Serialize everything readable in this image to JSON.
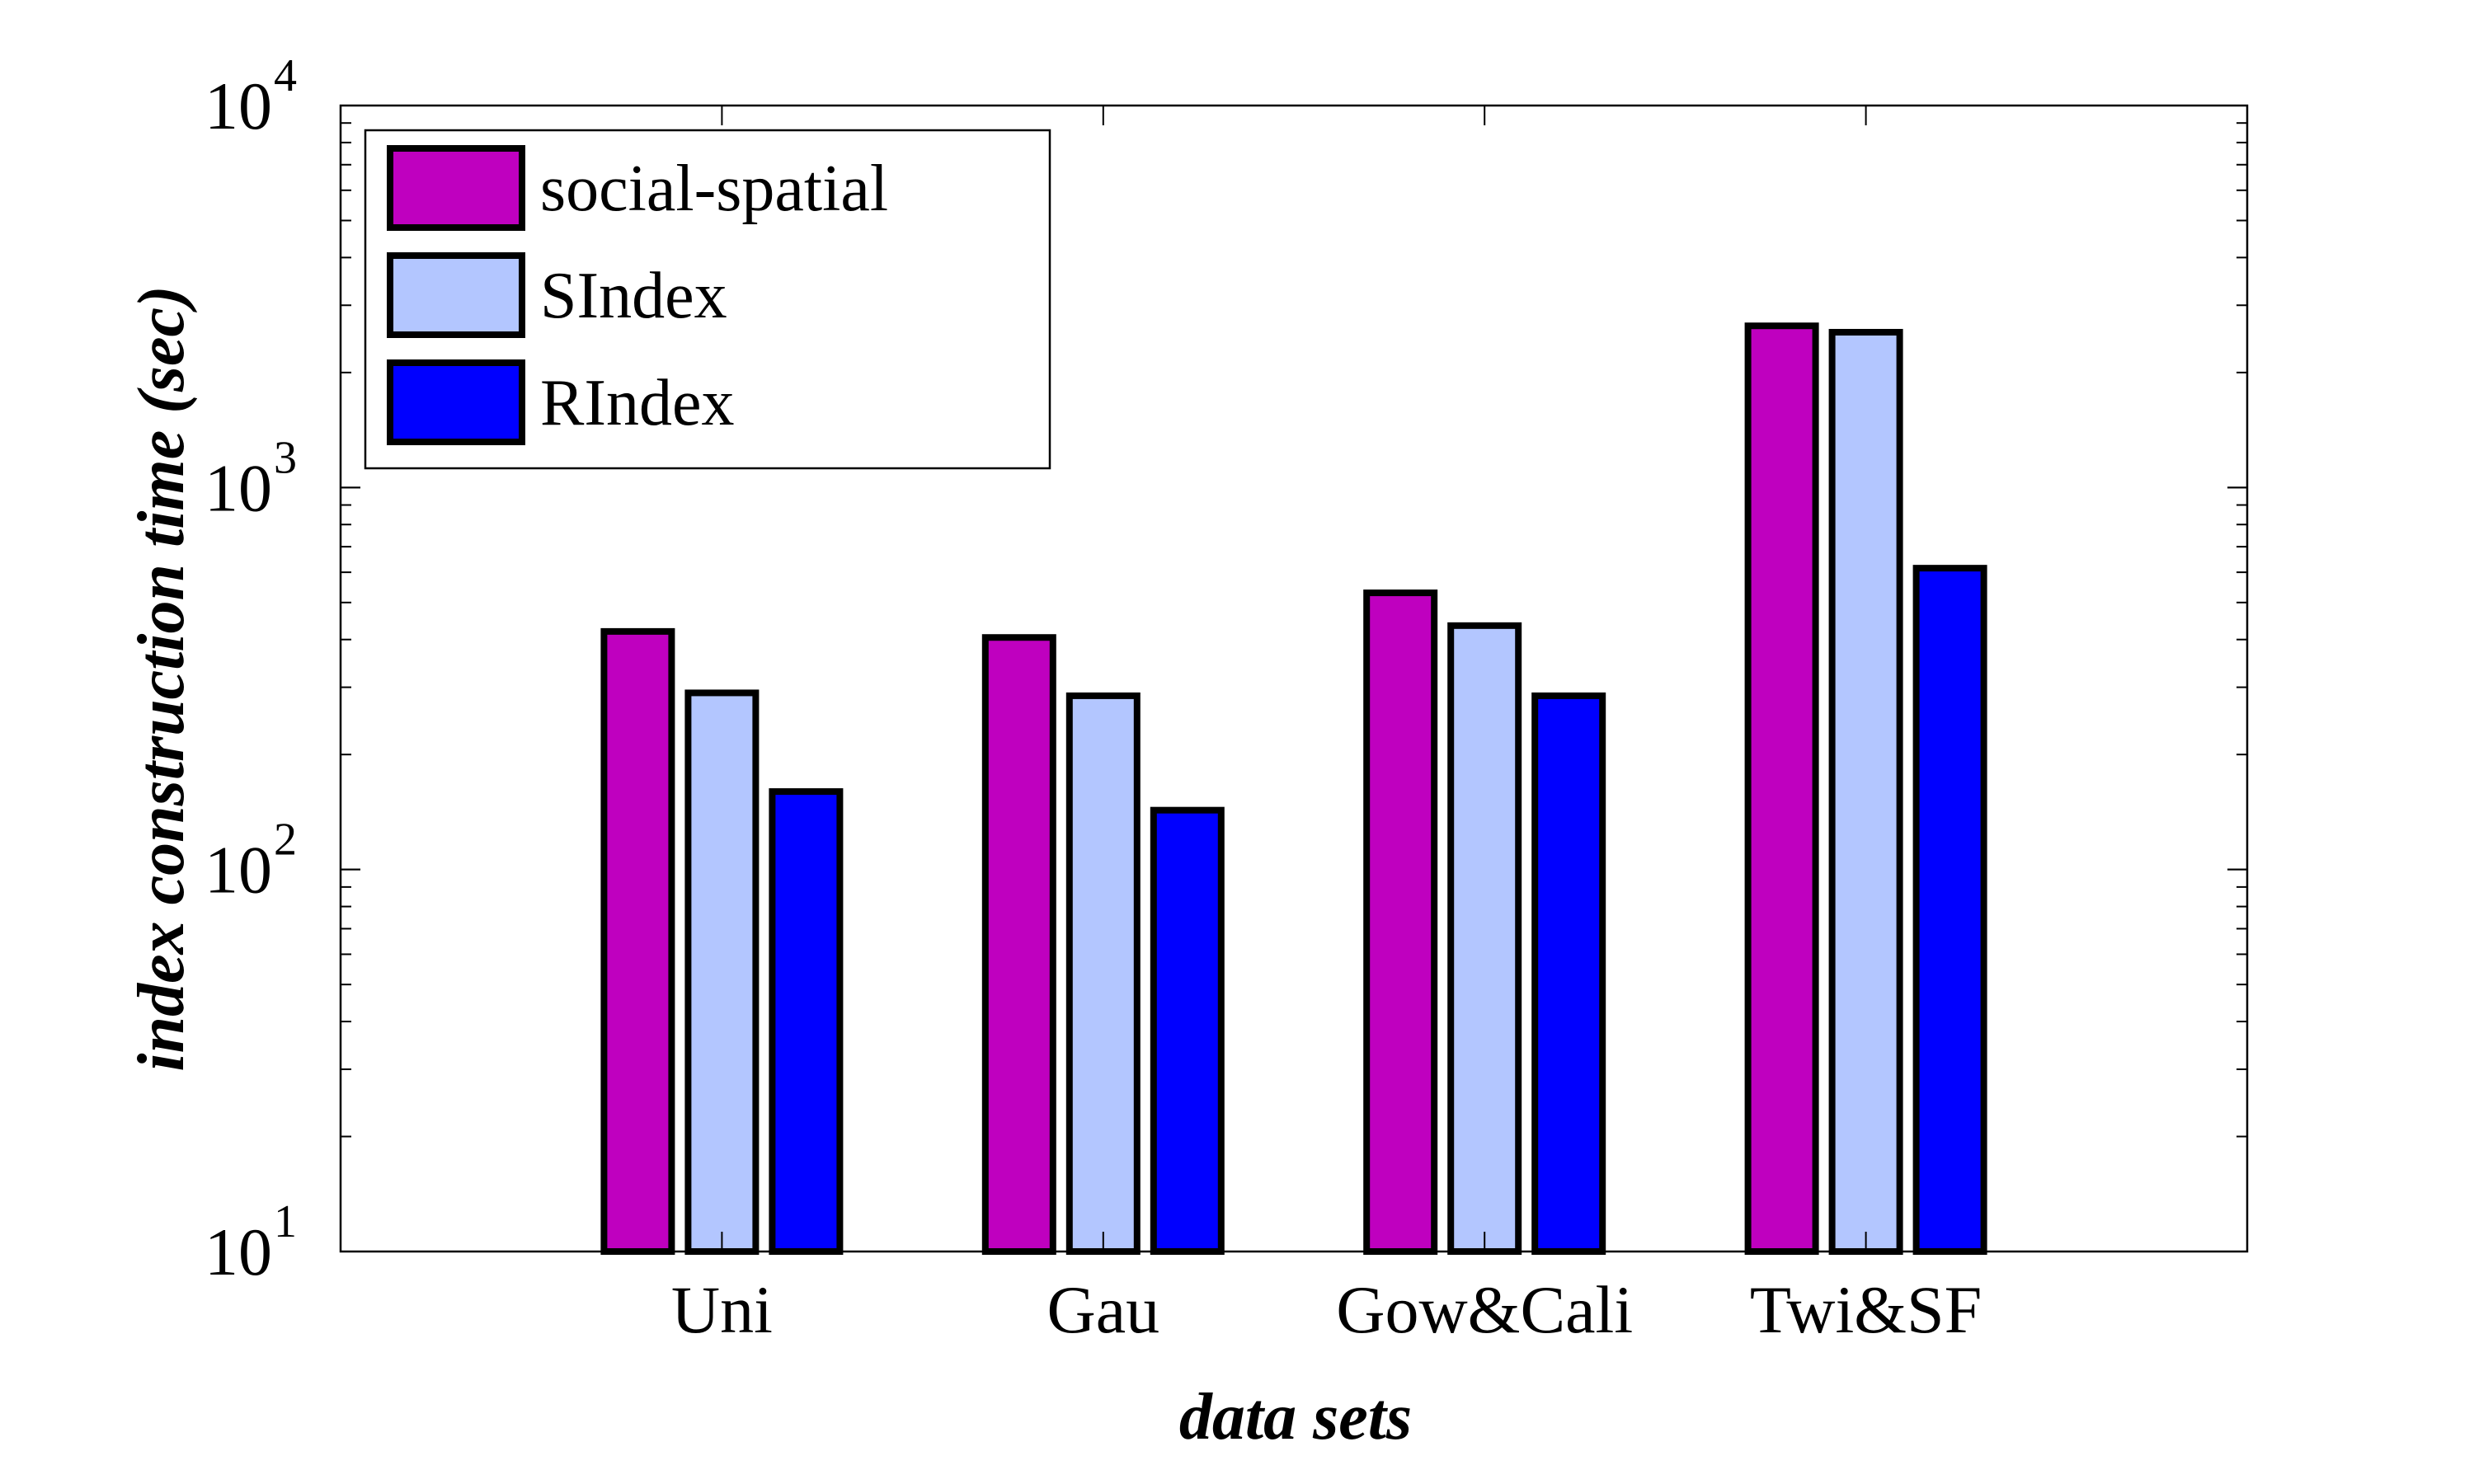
{
  "chart_data": {
    "type": "bar",
    "title": "",
    "xlabel": "data sets",
    "ylabel": "index construction time (sec)",
    "yscale": "log",
    "ylim": [
      10,
      10000
    ],
    "ytick_labels": [
      {
        "base": "10",
        "exp": "1"
      },
      {
        "base": "10",
        "exp": "2"
      },
      {
        "base": "10",
        "exp": "3"
      },
      {
        "base": "10",
        "exp": "4"
      }
    ],
    "categories": [
      "Uni",
      "Gau",
      "Gow&Cali",
      "Twi&SF"
    ],
    "series": [
      {
        "name": "social-spatial",
        "color": "#BF00BF",
        "values": [
          420,
          405,
          530,
          2650
        ]
      },
      {
        "name": "SIndex",
        "color": "#B3C6FF",
        "values": [
          290,
          285,
          435,
          2550
        ]
      },
      {
        "name": "RIndex",
        "color": "#0000FF",
        "values": [
          160,
          143,
          285,
          615
        ]
      }
    ],
    "legend_position": "top-left",
    "grid": false
  }
}
